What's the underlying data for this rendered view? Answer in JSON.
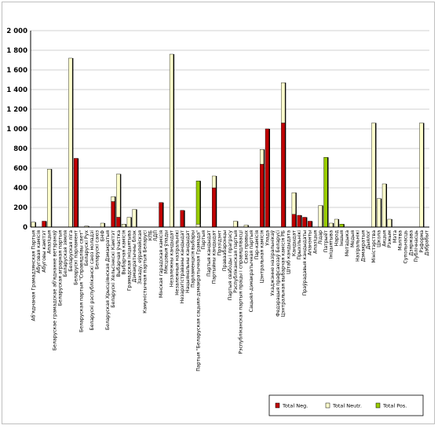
{
  "chart_data": {
    "type": "bar",
    "stacked": true,
    "ylim": [
      0,
      2000
    ],
    "yticks": [
      "0",
      "200",
      "400",
      "600",
      "800",
      "1 000",
      "1 200",
      "1 400",
      "1 600",
      "1 800",
      "2 000"
    ],
    "ytick_values": [
      0,
      200,
      400,
      600,
      800,
      1000,
      1200,
      1400,
      1600,
      1800,
      2000
    ],
    "grid": true,
    "legend_position": "bottom-right",
    "colors": {
      "neg": "#c00000",
      "neut": "#ffffcc",
      "pos": "#99cc00",
      "border": "#000000",
      "gridline": "#c0c0c0"
    },
    "categories": [
      "Аб'яднаная Грамадзянская Партыя",
      "Абуговая камісія",
      "Абуговы камітэт",
      "Апазіцыя",
      "Беларускае грамадскае аб'яднанне ветэранаў",
      "Беларуская аграрная партыя",
      "Беларуская зямля",
      "Беларуская ліга",
      "Беларускі парламент",
      "Беларуская партыя \"Справядлівы свет\"",
      "Беларускі Рух",
      "Беларускі рэспубліканскі саюз моладзі",
      "Беларускі саюз",
      "БНФ",
      "Беларуская Хрысціянская Дэмакратыя",
      "Беларускі Хельсінкскі Камітэт",
      "Выбарчая ўчастка",
      "Выбарчая камісія",
      "Грамадская ініцыятыва",
      "Дэмакратычны блок",
      "Захаду, еўрапейская",
      "Камуністычная партыя Беларусі",
      "КПБ",
      "ЛДП",
      "Мінская гарадская камісія",
      "Мясцовыя ўлады",
      "Незалежны кандыдат",
      "Незалежныя назіральнікі",
      "Незарэгістраваны кандыдат",
      "Нацыянальны кандыдат",
      "Парламенцкія выбары",
      "Партыя \"Беларуская сацыял-дэмакратычная Грамада\"",
      "Партыя",
      "Партыя кандыдат",
      "Партыйны кандыдат",
      "Прэзідэнт",
      "Праваабаронцы",
      "Партыя свабоды і прагрэсу",
      "Рэспубліканская партыя",
      "Рэспубліканская партыя працы і справядлівасці",
      "Саюз правых",
      "Сацыял-дэмакратычная партыя",
      "Пар-камісія",
      "Цэнтральная камісія",
      "Улада",
      "Ухаджэнне назіральнікаў",
      "Федэрацыя прафсаюзаў Беларусі",
      "Цэнтральная выбарчая камісія РБ",
      "Штаб кандыдата",
      "Кандыдат",
      "Прыхільнікі",
      "Праўрадавыя кандыдаты",
      "Апанэнты",
      "Апазіцыя",
      "Лідар",
      "Патрыёт",
      "Ініцыятыва",
      "Народ",
      "Іншыя",
      "Метадыка",
      "Медыя",
      "Назіральнікі",
      "Дэмакратыя",
      "Дыялог",
      "Міністэрства",
      "Школа",
      "Акцыя",
      "Рэжым",
      "Мэта",
      "Малітва",
      "Супольнасць",
      "Дзяржава",
      "Публічнасць",
      "Рэформа",
      "Дабрабыт"
    ],
    "series": [
      {
        "name": "Total Neg.",
        "values": [
          0,
          0,
          60,
          0,
          0,
          0,
          0,
          0,
          700,
          0,
          0,
          0,
          0,
          0,
          0,
          260,
          100,
          0,
          0,
          0,
          0,
          0,
          0,
          0,
          250,
          0,
          0,
          0,
          170,
          0,
          0,
          0,
          0,
          0,
          400,
          0,
          0,
          0,
          0,
          0,
          0,
          0,
          0,
          640,
          1000,
          0,
          0,
          1060,
          0,
          130,
          120,
          100,
          60,
          0,
          0,
          0,
          0,
          0,
          0,
          0,
          0,
          0,
          0,
          0,
          0,
          0,
          0,
          0,
          0,
          0,
          0,
          0,
          0,
          0,
          0
        ]
      },
      {
        "name": "Total Neutr.",
        "values": [
          50,
          0,
          0,
          590,
          0,
          0,
          0,
          1720,
          0,
          0,
          10,
          0,
          0,
          40,
          0,
          50,
          440,
          30,
          100,
          180,
          0,
          0,
          0,
          0,
          0,
          0,
          1760,
          0,
          0,
          0,
          0,
          30,
          0,
          0,
          120,
          0,
          0,
          0,
          60,
          0,
          20,
          0,
          0,
          150,
          0,
          0,
          0,
          410,
          0,
          220,
          0,
          0,
          0,
          0,
          220,
          0,
          40,
          80,
          0,
          0,
          0,
          0,
          0,
          0,
          1060,
          290,
          440,
          80,
          0,
          0,
          0,
          0,
          0,
          1060,
          0
        ]
      },
      {
        "name": "Total Pos.",
        "values": [
          0,
          0,
          0,
          0,
          0,
          0,
          0,
          0,
          0,
          0,
          0,
          0,
          0,
          0,
          0,
          0,
          0,
          0,
          0,
          0,
          0,
          0,
          0,
          0,
          0,
          0,
          0,
          0,
          0,
          0,
          0,
          440,
          0,
          0,
          0,
          0,
          0,
          0,
          0,
          0,
          0,
          0,
          0,
          0,
          0,
          0,
          0,
          0,
          0,
          0,
          0,
          0,
          0,
          0,
          0,
          710,
          0,
          0,
          30,
          0,
          0,
          0,
          0,
          0,
          0,
          0,
          0,
          0,
          0,
          0,
          0,
          0,
          0,
          0,
          0
        ]
      }
    ],
    "legend": [
      {
        "label": "Total Neg.",
        "key": "neg"
      },
      {
        "label": "Total Neutr.",
        "key": "neut"
      },
      {
        "label": "Total Pos.",
        "key": "pos"
      }
    ]
  }
}
